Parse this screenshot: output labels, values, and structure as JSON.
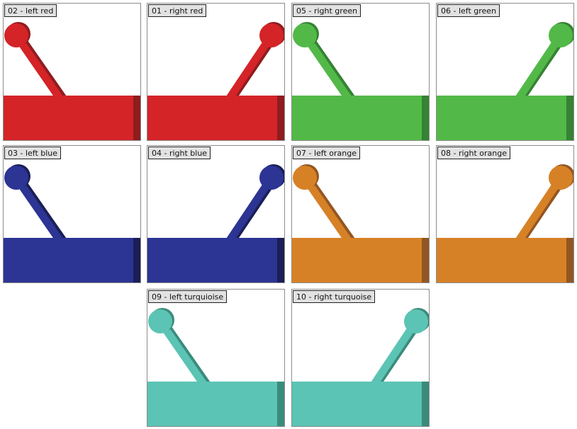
{
  "tiles": [
    {
      "label": "02 - left  red",
      "side": "left",
      "color": "#d42428",
      "shade": "#8f1c1f"
    },
    {
      "label": "01 - right  red",
      "side": "right",
      "color": "#d42428",
      "shade": "#8f1c1f"
    },
    {
      "label": "05 - right  green",
      "side": "left",
      "color": "#52b948",
      "shade": "#358333"
    },
    {
      "label": "06 - left  green",
      "side": "right",
      "color": "#52b948",
      "shade": "#358333"
    },
    {
      "label": "03 - left  blue",
      "side": "left",
      "color": "#2c3494",
      "shade": "#1a1f55"
    },
    {
      "label": "04 - right  blue",
      "side": "right",
      "color": "#2c3494",
      "shade": "#1a1f55"
    },
    {
      "label": "07 - left  orange",
      "side": "left",
      "color": "#d78127",
      "shade": "#935622"
    },
    {
      "label": "08 - right  orange",
      "side": "right",
      "color": "#d78127",
      "shade": "#935622"
    },
    {
      "label": "09 - left  turquioise",
      "side": "left",
      "color": "#5cc4b4",
      "shade": "#3a8b7c"
    },
    {
      "label": "10 - right  turquoise",
      "side": "right",
      "color": "#5cc4b4",
      "shade": "#3a8b7c"
    }
  ]
}
